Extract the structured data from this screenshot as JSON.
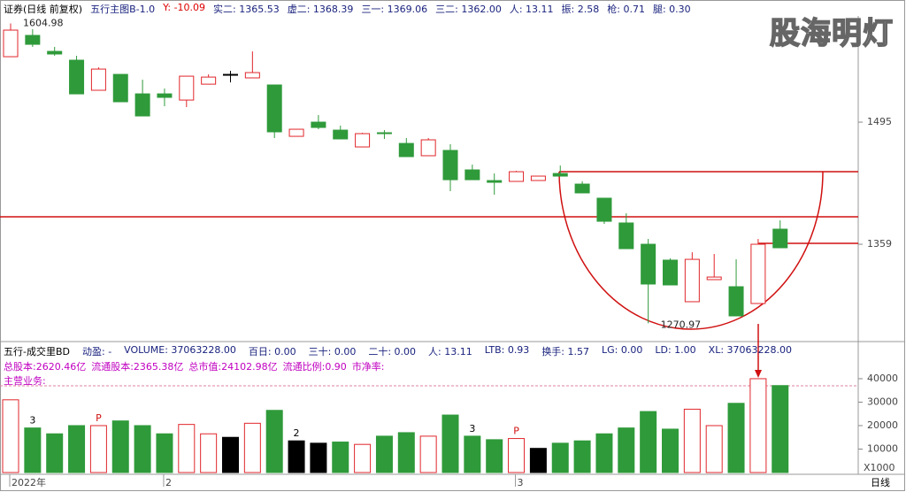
{
  "header": {
    "items": [
      "证券(日线 前复权)",
      "五行主图B-1.0",
      "Y: -10.09",
      "实二: 1365.53",
      "虚二: 1368.39",
      "三一: 1369.06",
      "三二: 1362.00",
      "人: 13.11",
      "振: 2.58",
      "枪: 0.71",
      "腿: 0.30"
    ],
    "logo": "股海明灯"
  },
  "chart_data": [
    {
      "type": "candlestick",
      "categories": [
        "2022年",
        null,
        null,
        null,
        null,
        null,
        null,
        "2",
        null,
        null,
        null,
        null,
        null,
        null,
        null,
        null,
        null,
        null,
        null,
        null,
        null,
        null,
        null,
        "3",
        null,
        null,
        null,
        null,
        null,
        null,
        null,
        null,
        null,
        null,
        null,
        null
      ],
      "open": [
        1567.9,
        1591.6,
        1573.8,
        1564,
        1530.5,
        1548.2,
        1526.5,
        1526.5,
        1519.6,
        1537.3,
        1548.2,
        1544.3,
        1536.4,
        1479.2,
        1495,
        1486.1,
        1467.4,
        1483.2,
        1471.3,
        1457.6,
        1463.5,
        1441.8,
        1429.9,
        1429,
        1430,
        1437.8,
        1426,
        1410.3,
        1382.7,
        1359,
        1341.3,
        1295,
        1319.6,
        1311.7,
        1293,
        1375.8
      ],
      "high": [
        1604.98,
        1598.5,
        1578.8,
        1568.9,
        1556.1,
        1548.2,
        1542.3,
        1532.4,
        1546.2,
        1548.2,
        1552.2,
        1573.8,
        1536.4,
        1487.1,
        1502.9,
        1491.1,
        1483.2,
        1486.1,
        1477.3,
        1477.3,
        1470.4,
        1447.7,
        1437.8,
        1440.8,
        1435,
        1446.7,
        1429,
        1410.3,
        1393.5,
        1364.9,
        1343.2,
        1350.1,
        1348.2,
        1342.2,
        1364.9,
        1385.6
      ],
      "low": [
        1567.9,
        1578.8,
        1568.9,
        1526.5,
        1530.5,
        1517.7,
        1501.9,
        1512.7,
        1511.8,
        1537.3,
        1539.3,
        1544.3,
        1477.3,
        1479.2,
        1487.1,
        1476.3,
        1467.4,
        1476.3,
        1456.6,
        1457.6,
        1418.1,
        1430.9,
        1414.2,
        1429,
        1430,
        1434.9,
        1416.2,
        1381.7,
        1354.1,
        1270.97,
        1313.7,
        1295,
        1319.6,
        1279.2,
        1293,
        1355.1
      ],
      "close": [
        1597.5,
        1581.7,
        1570.9,
        1526.5,
        1554.1,
        1517.7,
        1501.9,
        1522.6,
        1546.2,
        1545.2,
        1548.2,
        1550.2,
        1484.2,
        1487.1,
        1489.1,
        1476.3,
        1482.2,
        1482.2,
        1456.6,
        1475.3,
        1430.9,
        1430.9,
        1428,
        1439.8,
        1434.9,
        1434.9,
        1416.2,
        1384.6,
        1354.1,
        1314.7,
        1313.7,
        1342.2,
        1322.5,
        1279.2,
        1359,
        1355.1
      ],
      "ylim": [
        1251.6,
        1613.3
      ],
      "yticks": [
        1495,
        1359
      ],
      "up_color": "#e0262b",
      "down_color": "#2f9a3a",
      "flat_color": "#000000"
    },
    {
      "type": "bar",
      "title": "五行-成交里BD",
      "indicators": [
        "动盈: -",
        "VOLUME: 37063228.00",
        "百日: 0.00",
        "三十: 0.00",
        "二十: 0.00",
        "人: 13.11",
        "LTB: 0.93",
        "换手: 1.57",
        "LG: 0.00",
        "LD: 1.00",
        "XL: 37063228.00"
      ],
      "info": [
        "总股本:2620.46亿",
        "流通股本:2365.38亿",
        "总市值:24102.98亿",
        "流通比例:0.90",
        "市净率:"
      ],
      "business": "主营业务:",
      "values": [
        31000,
        19000,
        16500,
        20000,
        20000,
        22000,
        20000,
        16500,
        20500,
        16500,
        15000,
        21000,
        26500,
        13500,
        12500,
        13000,
        12000,
        15500,
        17000,
        15500,
        24500,
        15500,
        14000,
        14500,
        10300,
        12500,
        13500,
        16500,
        19000,
        26000,
        18500,
        27000,
        20000,
        29500,
        40000,
        37063.228
      ],
      "colors": [
        "#e0262b",
        "#2f9a3a",
        "#2f9a3a",
        "#2f9a3a",
        "#e0262b",
        "#2f9a3a",
        "#2f9a3a",
        "#2f9a3a",
        "#e0262b",
        "#e0262b",
        "#000000",
        "#e0262b",
        "#2f9a3a",
        "#000000",
        "#000000",
        "#2f9a3a",
        "#e0262b",
        "#2f9a3a",
        "#2f9a3a",
        "#e0262b",
        "#2f9a3a",
        "#2f9a3a",
        "#2f9a3a",
        "#e0262b",
        "#000000",
        "#2f9a3a",
        "#2f9a3a",
        "#2f9a3a",
        "#2f9a3a",
        "#2f9a3a",
        "#2f9a3a",
        "#e0262b",
        "#e0262b",
        "#2f9a3a",
        "#e0262b",
        "#2f9a3a"
      ],
      "marks": [
        null,
        "3",
        null,
        null,
        "P",
        null,
        null,
        null,
        null,
        null,
        null,
        null,
        null,
        "2",
        null,
        null,
        null,
        null,
        null,
        null,
        null,
        "3",
        null,
        "P",
        null,
        null,
        null,
        null,
        null,
        null,
        null,
        null,
        null,
        null,
        null,
        null
      ],
      "ylim": [
        0,
        43000
      ],
      "yticks": [
        10000,
        20000,
        30000,
        40000
      ],
      "unit": "X1000"
    }
  ],
  "footer": {
    "period": "日线"
  }
}
